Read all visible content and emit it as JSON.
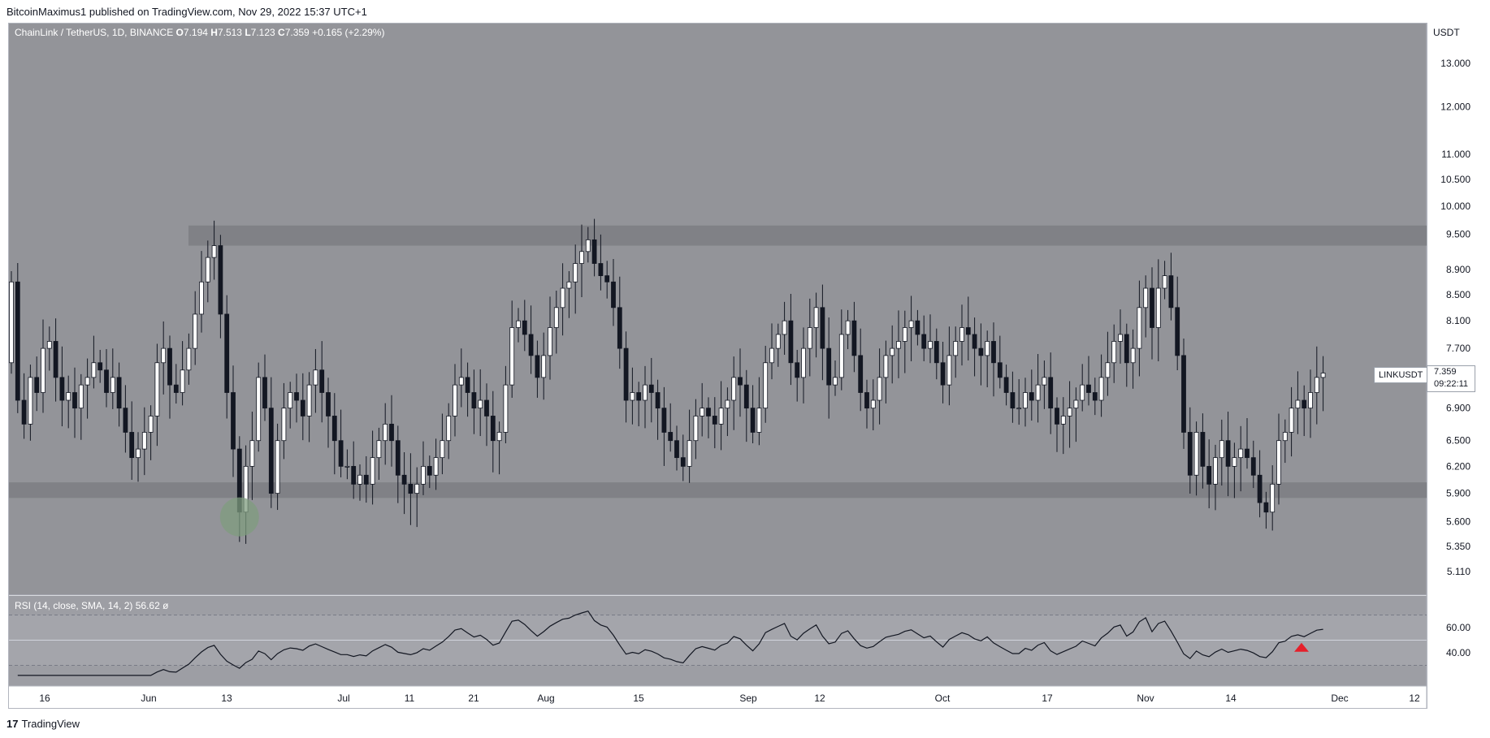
{
  "header": {
    "published_text": "BitcoinMaximus1 published on TradingView.com, Nov 29, 2022 15:37 UTC+1"
  },
  "legend": {
    "symbol": "ChainLink / TetherUS, 1D, BINANCE",
    "o_label": "O",
    "o_value": "7.194",
    "h_label": "H",
    "h_value": "7.513",
    "l_label": "L",
    "l_value": "7.123",
    "c_label": "C",
    "c_value": "7.359",
    "change": "+0.165 (+2.29%)"
  },
  "rsi_legend": {
    "label": "RSI (14, close, SMA, 14, 2)",
    "value": "56.62",
    "extra": "ø"
  },
  "currency_label": "USDT",
  "ticker_label": "LINKUSDT",
  "last_price": "7.359",
  "countdown": "09:22:11",
  "footer": {
    "logo_mark": "17",
    "brand": "TradingView"
  },
  "colors": {
    "background": "#939499",
    "rsi_background": "#9d9ea4",
    "zone_fill": "#7d7e83",
    "candle_up": "#ffffff",
    "candle_down": "#131722",
    "highlight_circle": "#7f9c7f",
    "marker": "#e5202b"
  },
  "chart_data": {
    "type": "candlestick",
    "title": "ChainLink / TetherUS, 1D, BINANCE",
    "y_axis_ticks": [
      "13.000",
      "12.000",
      "11.000",
      "10.500",
      "10.000",
      "9.500",
      "8.900",
      "8.500",
      "8.100",
      "7.700",
      "6.900",
      "6.500",
      "6.200",
      "5.900",
      "5.600",
      "5.350",
      "5.110"
    ],
    "y_scale": "log",
    "x_axis_ticks": [
      "16",
      "Jun",
      "13",
      "Jul",
      "11",
      "21",
      "Aug",
      "15",
      "Sep",
      "12",
      "Oct",
      "17",
      "Nov",
      "14",
      "Dec",
      "12"
    ],
    "closes": [
      8.7,
      7.0,
      6.7,
      7.3,
      7.1,
      7.7,
      7.8,
      7.3,
      7.0,
      7.1,
      6.9,
      7.2,
      7.3,
      7.5,
      7.4,
      7.1,
      7.3,
      6.9,
      6.6,
      6.3,
      6.4,
      6.6,
      6.8,
      7.5,
      7.7,
      7.2,
      7.1,
      7.4,
      7.7,
      8.2,
      8.7,
      9.1,
      9.3,
      8.2,
      7.1,
      6.4,
      5.7,
      6.2,
      6.5,
      7.3,
      6.9,
      5.9,
      6.5,
      6.9,
      7.1,
      7.0,
      6.8,
      7.2,
      7.4,
      7.1,
      6.8,
      6.5,
      6.2,
      6.2,
      6.0,
      6.1,
      6.0,
      6.3,
      6.5,
      6.7,
      6.5,
      6.1,
      6.0,
      5.9,
      6.0,
      6.2,
      6.1,
      6.3,
      6.5,
      6.8,
      7.2,
      7.3,
      7.1,
      6.9,
      7.0,
      6.8,
      6.5,
      6.6,
      7.2,
      8.0,
      8.1,
      7.9,
      7.6,
      7.3,
      7.6,
      8.0,
      8.3,
      8.6,
      8.7,
      9.0,
      9.2,
      9.4,
      9.0,
      8.8,
      8.7,
      8.3,
      7.7,
      7.0,
      7.1,
      7.0,
      7.2,
      7.1,
      6.9,
      6.6,
      6.5,
      6.3,
      6.2,
      6.5,
      6.8,
      6.9,
      6.8,
      6.7,
      6.9,
      7.0,
      7.3,
      7.2,
      6.9,
      6.6,
      6.9,
      7.5,
      7.7,
      7.9,
      8.1,
      7.5,
      7.3,
      7.7,
      8.0,
      8.3,
      7.7,
      7.2,
      7.3,
      7.9,
      8.1,
      7.6,
      7.1,
      6.9,
      7.0,
      7.3,
      7.6,
      7.7,
      7.8,
      8.0,
      8.1,
      7.9,
      7.7,
      7.8,
      7.5,
      7.2,
      7.6,
      7.8,
      8.0,
      7.9,
      7.7,
      7.6,
      7.8,
      7.5,
      7.3,
      7.1,
      6.9,
      6.9,
      7.1,
      7.0,
      7.2,
      7.3,
      6.9,
      6.7,
      6.8,
      6.9,
      7.0,
      7.2,
      7.1,
      7.0,
      7.3,
      7.5,
      7.8,
      7.9,
      7.5,
      7.7,
      8.3,
      8.6,
      8.0,
      8.6,
      8.8,
      8.3,
      7.6,
      6.6,
      6.1,
      6.6,
      6.2,
      6.0,
      6.3,
      6.5,
      6.2,
      6.3,
      6.4,
      6.3,
      6.1,
      5.8,
      5.7,
      6.0,
      6.5,
      6.6,
      6.9,
      7.0,
      6.9,
      7.1,
      7.3,
      7.359
    ]
  }
}
